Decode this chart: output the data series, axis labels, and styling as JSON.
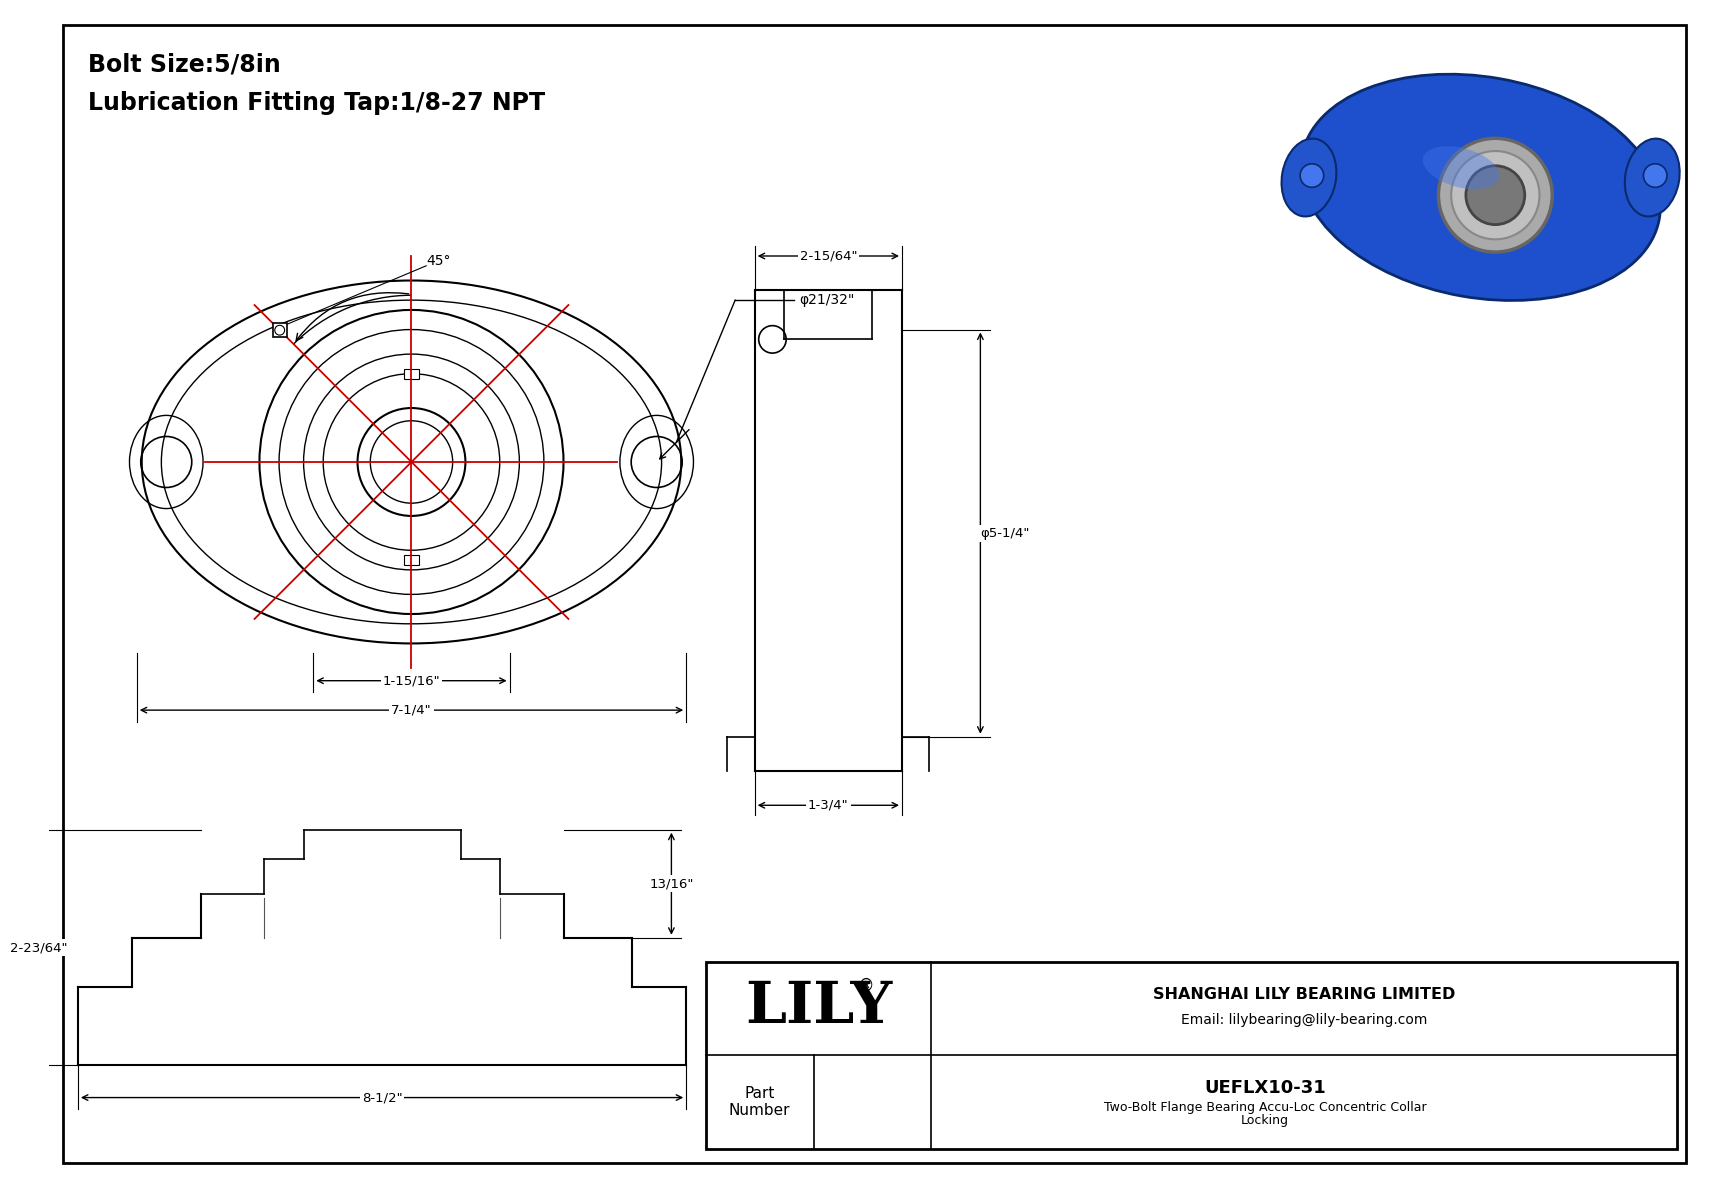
{
  "bg_color": "#ffffff",
  "line_color": "#000000",
  "red_color": "#cc0000",
  "title_line1": "Bolt Size:5/8in",
  "title_line2": "Lubrication Fitting Tap:1/8-27 NPT",
  "company": "SHANGHAI LILY BEARING LIMITED",
  "email": "Email: lilybearing@lily-bearing.com",
  "part_label": "Part\nNumber",
  "part_number": "UEFLX10-31",
  "description_line1": "Two-Bolt Flange Bearing Accu-Loc Concentric Collar",
  "description_line2": "Locking",
  "lily_text": "LILY",
  "dim_7_14": "7-1/4\"",
  "dim_1_1516": "1-15/16\"",
  "dim_phi_2132": "φ21/32\"",
  "dim_45": "45°",
  "dim_2_1564": "2-15/64\"",
  "dim_phi_514": "φ5-1/4\"",
  "dim_1_34": "1-3/4\"",
  "dim_2_2364": "2-23/64\"",
  "dim_13_16": "13/16\"",
  "dim_8_12": "8-1/2\""
}
